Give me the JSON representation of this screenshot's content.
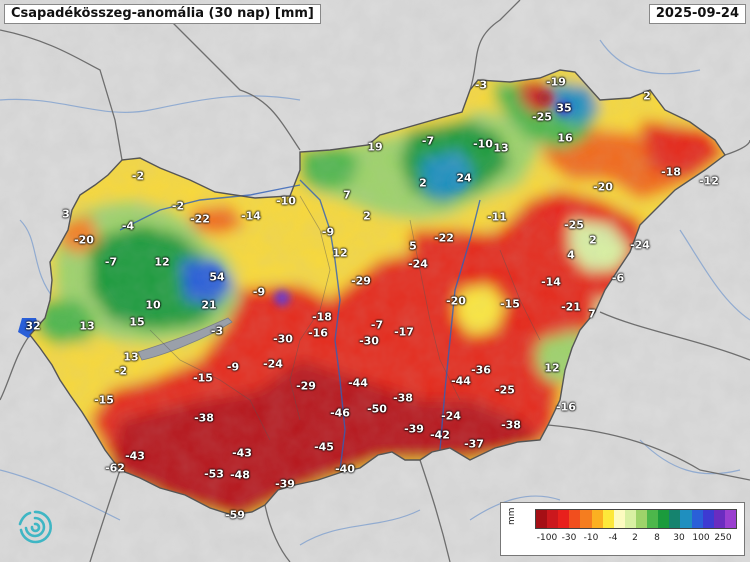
{
  "header": {
    "title": "Csapadékösszeg-anomália (30 nap) [mm]",
    "date": "2025-09-24"
  },
  "legend": {
    "unit": "mm",
    "tick_labels": [
      "-100",
      "-30",
      "-10",
      "-4",
      "2",
      "8",
      "30",
      "100",
      "250"
    ],
    "colors": [
      "#a50f15",
      "#cb181d",
      "#e8201c",
      "#f14e1e",
      "#f57d1f",
      "#fbb021",
      "#fde83a",
      "#fdfbc0",
      "#d9f0a3",
      "#9ed36a",
      "#4db74b",
      "#1b9b3c",
      "#15836e",
      "#1f8fbf",
      "#2a5fd8",
      "#3d3ad2",
      "#6a2cc0",
      "#9a3fd0"
    ]
  },
  "station_values": [
    {
      "label": "-3"
    },
    {
      "label": "-19"
    },
    {
      "label": "35"
    },
    {
      "label": "-25"
    },
    {
      "label": "2"
    },
    {
      "label": "16"
    },
    {
      "label": "19"
    },
    {
      "label": "-7"
    },
    {
      "label": "-10"
    },
    {
      "label": "13"
    },
    {
      "label": "-2"
    },
    {
      "label": "24"
    },
    {
      "label": "-18"
    },
    {
      "label": "-12"
    },
    {
      "label": "-20"
    },
    {
      "label": "2"
    },
    {
      "label": "7"
    },
    {
      "label": "-2"
    },
    {
      "label": "-22"
    },
    {
      "label": "-14"
    },
    {
      "label": "-10"
    },
    {
      "label": "3"
    },
    {
      "label": "-4"
    },
    {
      "label": "-9"
    },
    {
      "label": "2"
    },
    {
      "label": "-11"
    },
    {
      "label": "-25"
    },
    {
      "label": "-20"
    },
    {
      "label": "5"
    },
    {
      "label": "-22"
    },
    {
      "label": "2"
    },
    {
      "label": "-24"
    },
    {
      "label": "-7"
    },
    {
      "label": "12"
    },
    {
      "label": "12"
    },
    {
      "label": "54"
    },
    {
      "label": "-9"
    },
    {
      "label": "-29"
    },
    {
      "label": "-24"
    },
    {
      "label": "4"
    },
    {
      "label": "-14"
    },
    {
      "label": "-6"
    },
    {
      "label": "10"
    },
    {
      "label": "21"
    },
    {
      "label": "-20"
    },
    {
      "label": "-15"
    },
    {
      "label": "-21"
    },
    {
      "label": "7"
    },
    {
      "label": "32"
    },
    {
      "label": "13"
    },
    {
      "label": "15"
    },
    {
      "label": "-18"
    },
    {
      "label": "-7"
    },
    {
      "label": "-17"
    },
    {
      "label": "-3"
    },
    {
      "label": "-30"
    },
    {
      "label": "-16"
    },
    {
      "label": "-30"
    },
    {
      "label": "13"
    },
    {
      "label": "-2"
    },
    {
      "label": "-9"
    },
    {
      "label": "-15"
    },
    {
      "label": "-24"
    },
    {
      "label": "-44"
    },
    {
      "label": "-36"
    },
    {
      "label": "12"
    },
    {
      "label": "-29"
    },
    {
      "label": "-44"
    },
    {
      "label": "-25"
    },
    {
      "label": "-15"
    },
    {
      "label": "-38"
    },
    {
      "label": "-46"
    },
    {
      "label": "-50"
    },
    {
      "label": "-38"
    },
    {
      "label": "-16"
    },
    {
      "label": "-24"
    },
    {
      "label": "-39"
    },
    {
      "label": "-42"
    },
    {
      "label": "-38"
    },
    {
      "label": "-37"
    },
    {
      "label": "-45"
    },
    {
      "label": "-43"
    },
    {
      "label": "-43"
    },
    {
      "label": "-62"
    },
    {
      "label": "-53"
    },
    {
      "label": "-48"
    },
    {
      "label": "-40"
    },
    {
      "label": "-39"
    },
    {
      "label": "-59"
    }
  ]
}
